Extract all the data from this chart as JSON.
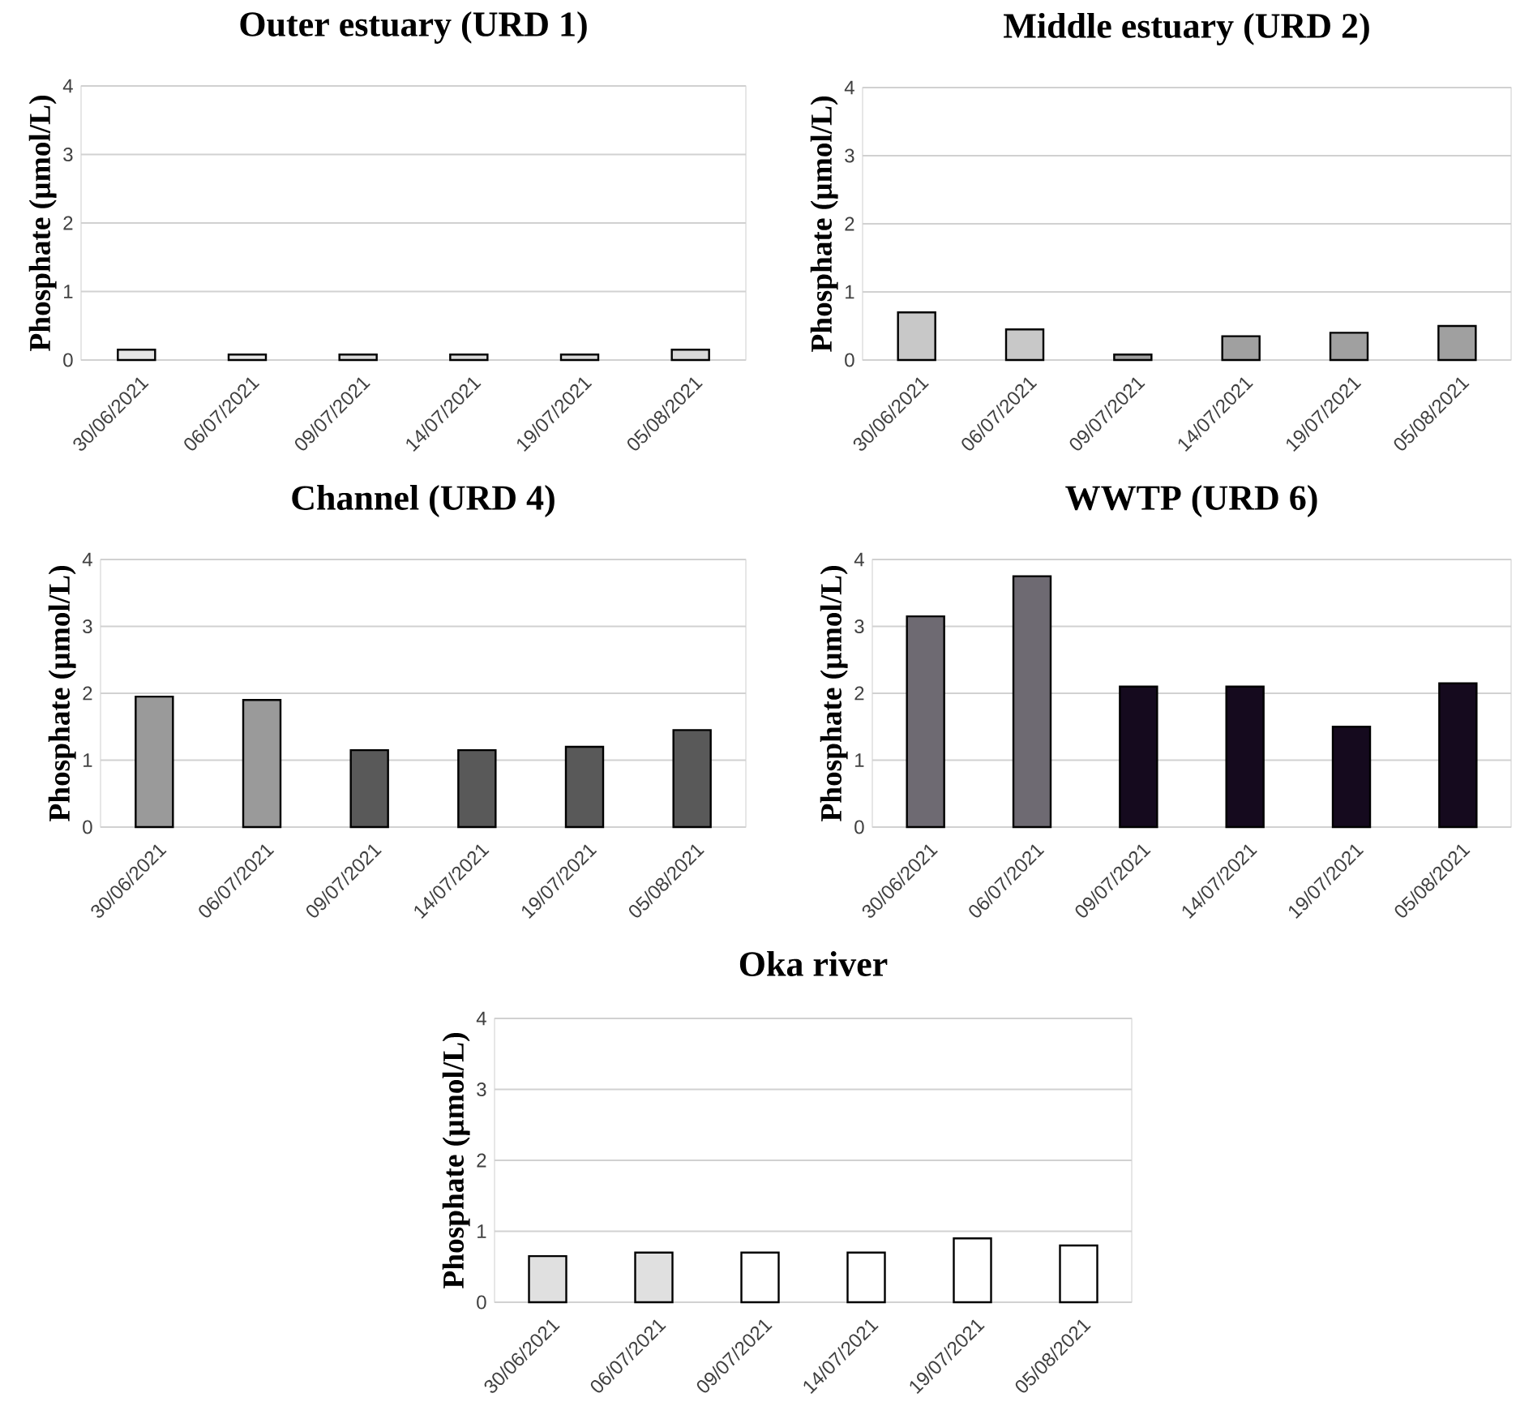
{
  "chart_data": [
    {
      "type": "bar",
      "title": "Outer estuary (URD 1)",
      "ylabel": "Phosphate (µmol/L)",
      "categories": [
        "30/06/2021",
        "06/07/2021",
        "09/07/2021",
        "14/07/2021",
        "19/07/2021",
        "05/08/2021"
      ],
      "values": [
        0.15,
        0.08,
        0.08,
        0.08,
        0.08,
        0.15
      ],
      "colors": [
        "#e6e6e6",
        "#e6e6e6",
        "#d9d9d9",
        "#d9d9d9",
        "#d9d9d9",
        "#d9d9d9"
      ],
      "ylim": [
        0,
        4
      ],
      "yticks": [
        0,
        1,
        2,
        3,
        4
      ],
      "grid": "y"
    },
    {
      "type": "bar",
      "title": "Middle estuary (URD 2)",
      "ylabel": "Phosphate (µmol/L)",
      "categories": [
        "30/06/2021",
        "06/07/2021",
        "09/07/2021",
        "14/07/2021",
        "19/07/2021",
        "05/08/2021"
      ],
      "values": [
        0.7,
        0.45,
        0.08,
        0.35,
        0.4,
        0.5
      ],
      "colors": [
        "#c8c8c8",
        "#c8c8c8",
        "#a0a0a0",
        "#a0a0a0",
        "#a0a0a0",
        "#a0a0a0"
      ],
      "ylim": [
        0,
        4
      ],
      "yticks": [
        0,
        1,
        2,
        3,
        4
      ],
      "grid": "y"
    },
    {
      "type": "bar",
      "title": "Channel (URD 4)",
      "ylabel": "Phosphate (µmol/L)",
      "categories": [
        "30/06/2021",
        "06/07/2021",
        "09/07/2021",
        "14/07/2021",
        "19/07/2021",
        "05/08/2021"
      ],
      "values": [
        1.95,
        1.9,
        1.15,
        1.15,
        1.2,
        1.45
      ],
      "colors": [
        "#9a9a9a",
        "#9a9a9a",
        "#595959",
        "#595959",
        "#595959",
        "#595959"
      ],
      "ylim": [
        0,
        4
      ],
      "yticks": [
        0,
        1,
        2,
        3,
        4
      ],
      "grid": "y"
    },
    {
      "type": "bar",
      "title": "WWTP (URD 6)",
      "ylabel": "Phosphate (µmol/L)",
      "categories": [
        "30/06/2021",
        "06/07/2021",
        "09/07/2021",
        "14/07/2021",
        "19/07/2021",
        "05/08/2021"
      ],
      "values": [
        3.15,
        3.75,
        2.1,
        2.1,
        1.5,
        2.15
      ],
      "colors": [
        "#6e6a72",
        "#6e6a72",
        "#150a1e",
        "#150a1e",
        "#150a1e",
        "#150a1e"
      ],
      "ylim": [
        0,
        4
      ],
      "yticks": [
        0,
        1,
        2,
        3,
        4
      ],
      "grid": "y"
    },
    {
      "type": "bar",
      "title": "Oka river",
      "ylabel": "Phosphate (µmol/L)",
      "categories": [
        "30/06/2021",
        "06/07/2021",
        "09/07/2021",
        "14/07/2021",
        "19/07/2021",
        "05/08/2021"
      ],
      "values": [
        0.65,
        0.7,
        0.7,
        0.7,
        0.9,
        0.8
      ],
      "colors": [
        "#e0e0e0",
        "#e0e0e0",
        "#ffffff",
        "#ffffff",
        "#ffffff",
        "#ffffff"
      ],
      "ylim": [
        0,
        4
      ],
      "yticks": [
        0,
        1,
        2,
        3,
        4
      ],
      "grid": "y"
    }
  ]
}
